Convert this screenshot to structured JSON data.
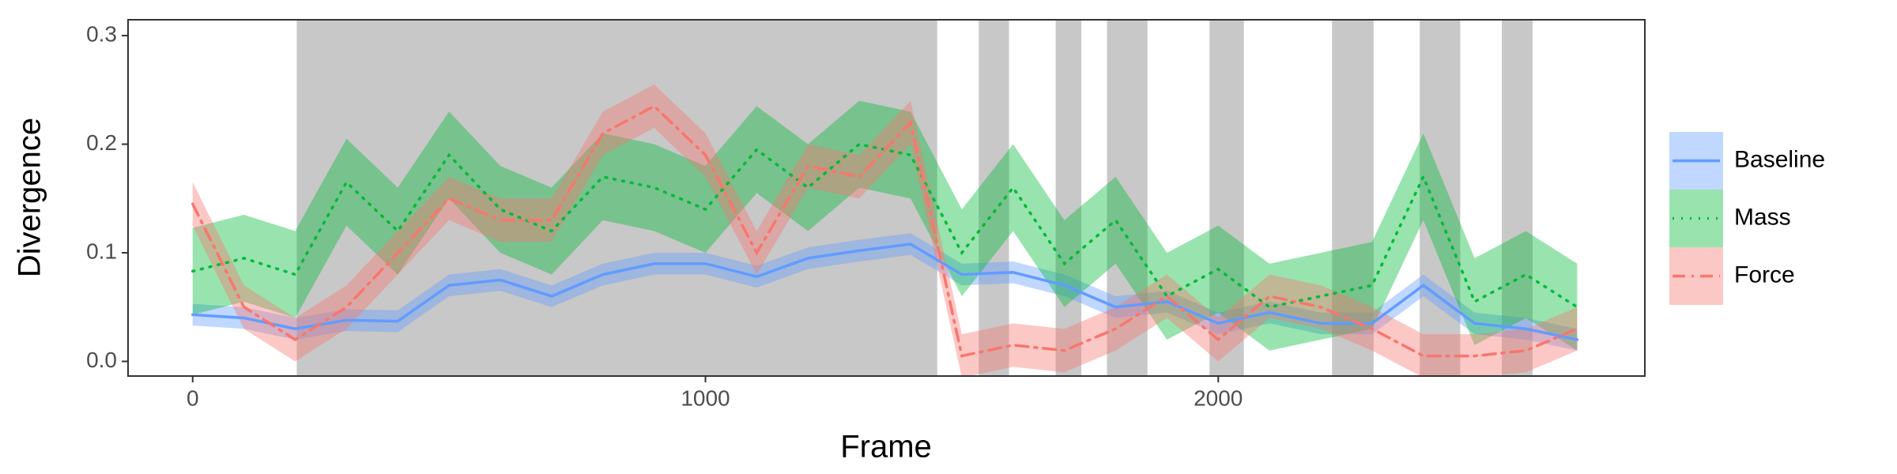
{
  "chart_data": {
    "type": "line",
    "x_label": "Frame",
    "y_label": "Divergence",
    "x": [
      0,
      100,
      200,
      300,
      400,
      500,
      600,
      700,
      800,
      900,
      1000,
      1100,
      1200,
      1300,
      1400,
      1500,
      1600,
      1700,
      1800,
      1900,
      2000,
      2100,
      2200,
      2300,
      2400,
      2500,
      2600,
      2700
    ],
    "xlim": [
      -126,
      2832
    ],
    "xticks": [
      0,
      1000,
      2000
    ],
    "ylim": [
      -0.0135,
      0.3146
    ],
    "yticks": [
      {
        "value": 0,
        "label": "0.0"
      },
      {
        "value": 0.1,
        "label": "0.1"
      },
      {
        "value": 0.2,
        "label": "0.2"
      },
      {
        "value": 0.3,
        "label": "0.3"
      }
    ],
    "grid": false,
    "legend": "right",
    "shaded_color": "#c8c8c8",
    "shaded_regions": [
      [
        203,
        1452
      ],
      [
        1533,
        1592
      ],
      [
        1683,
        1733
      ],
      [
        1783,
        1862
      ],
      [
        1983,
        2050
      ],
      [
        2222,
        2303
      ],
      [
        2393,
        2472
      ],
      [
        2553,
        2613
      ]
    ],
    "series": [
      {
        "name": "Baseline",
        "color": "#619CFF",
        "dash": "solid",
        "values": [
          0.043,
          0.04,
          0.03,
          0.038,
          0.037,
          0.07,
          0.075,
          0.06,
          0.08,
          0.09,
          0.09,
          0.078,
          0.095,
          0.102,
          0.108,
          0.08,
          0.082,
          0.07,
          0.05,
          0.055,
          0.035,
          0.045,
          0.035,
          0.035,
          0.07,
          0.035,
          0.03,
          0.02
        ],
        "lower": [
          0.033,
          0.03,
          0.02,
          0.028,
          0.027,
          0.06,
          0.065,
          0.05,
          0.07,
          0.08,
          0.08,
          0.068,
          0.085,
          0.092,
          0.098,
          0.07,
          0.072,
          0.06,
          0.04,
          0.045,
          0.025,
          0.035,
          0.025,
          0.025,
          0.06,
          0.025,
          0.02,
          0.01
        ],
        "upper": [
          0.053,
          0.05,
          0.04,
          0.048,
          0.047,
          0.08,
          0.085,
          0.07,
          0.09,
          0.1,
          0.1,
          0.088,
          0.105,
          0.112,
          0.118,
          0.09,
          0.092,
          0.08,
          0.06,
          0.065,
          0.045,
          0.055,
          0.045,
          0.045,
          0.08,
          0.045,
          0.04,
          0.03
        ]
      },
      {
        "name": "Mass",
        "color": "#00BA38",
        "dash": "dotted",
        "values": [
          0.083,
          0.095,
          0.08,
          0.165,
          0.12,
          0.19,
          0.14,
          0.12,
          0.17,
          0.16,
          0.14,
          0.195,
          0.16,
          0.2,
          0.19,
          0.1,
          0.16,
          0.09,
          0.13,
          0.06,
          0.085,
          0.05,
          0.06,
          0.07,
          0.17,
          0.055,
          0.08,
          0.05
        ],
        "lower": [
          0.043,
          0.055,
          0.04,
          0.125,
          0.08,
          0.15,
          0.1,
          0.08,
          0.13,
          0.12,
          0.1,
          0.155,
          0.12,
          0.16,
          0.15,
          0.06,
          0.12,
          0.05,
          0.09,
          0.02,
          0.045,
          0.01,
          0.02,
          0.03,
          0.13,
          0.015,
          0.04,
          0.01
        ],
        "upper": [
          0.123,
          0.135,
          0.12,
          0.205,
          0.16,
          0.23,
          0.18,
          0.16,
          0.21,
          0.2,
          0.18,
          0.235,
          0.2,
          0.24,
          0.23,
          0.14,
          0.2,
          0.13,
          0.17,
          0.1,
          0.125,
          0.09,
          0.1,
          0.11,
          0.21,
          0.095,
          0.12,
          0.09
        ]
      },
      {
        "name": "Force",
        "color": "#F8766D",
        "dash": "dashdot",
        "values": [
          0.145,
          0.05,
          0.02,
          0.05,
          0.1,
          0.15,
          0.13,
          0.13,
          0.21,
          0.235,
          0.19,
          0.1,
          0.18,
          0.17,
          0.22,
          0.005,
          0.015,
          0.01,
          0.03,
          0.06,
          0.02,
          0.06,
          0.05,
          0.03,
          0.005,
          0.005,
          0.01,
          0.03
        ],
        "lower": [
          0.125,
          0.03,
          0.0,
          0.03,
          0.08,
          0.13,
          0.11,
          0.11,
          0.19,
          0.215,
          0.17,
          0.08,
          0.16,
          0.15,
          0.2,
          -0.015,
          -0.005,
          -0.01,
          0.01,
          0.04,
          0.0,
          0.04,
          0.03,
          0.01,
          -0.015,
          -0.015,
          -0.01,
          0.01
        ],
        "upper": [
          0.165,
          0.07,
          0.04,
          0.07,
          0.12,
          0.17,
          0.15,
          0.15,
          0.23,
          0.255,
          0.21,
          0.12,
          0.2,
          0.19,
          0.24,
          0.025,
          0.035,
          0.03,
          0.05,
          0.08,
          0.04,
          0.08,
          0.07,
          0.05,
          0.025,
          0.025,
          0.03,
          0.05
        ]
      }
    ]
  }
}
